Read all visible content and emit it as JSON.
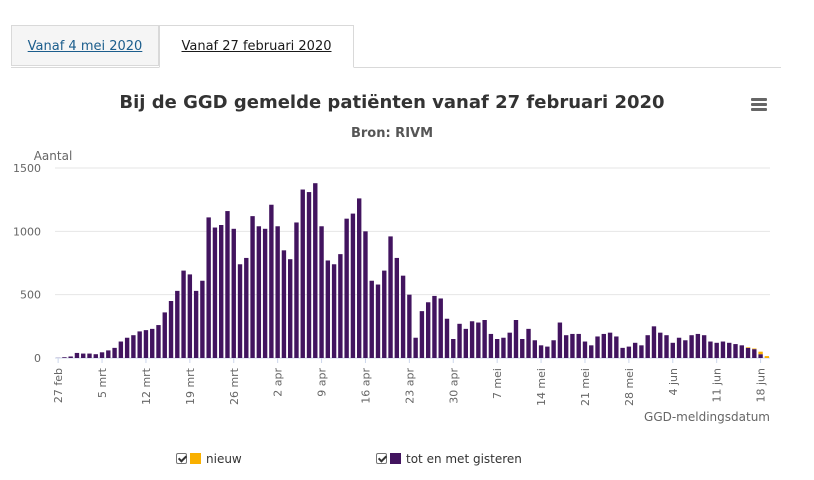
{
  "tabs": [
    {
      "label": "Vanaf 4 mei 2020",
      "active": false
    },
    {
      "label": "Vanaf 27 februari 2020",
      "active": true
    }
  ],
  "menu_icon": "hamburger-menu-icon",
  "chart_data": {
    "type": "bar",
    "stacked": true,
    "title": "Bij de GGD gemelde patiënten vanaf 27 februari 2020",
    "subtitle": "Bron: RIVM",
    "ylabel": "Aantal",
    "xlabel": "GGD-meldingsdatum",
    "ylim": [
      0,
      1500
    ],
    "yticks": [
      0,
      500,
      1000,
      1500
    ],
    "start_date": "27 feb",
    "xtick_labels": [
      "27 feb",
      "5 mrt",
      "12 mrt",
      "19 mrt",
      "26 mrt",
      "2 apr",
      "9 apr",
      "16 apr",
      "23 apr",
      "30 apr",
      "7 mei",
      "14 mei",
      "21 mei",
      "28 mei",
      "4 jun",
      "11 jun",
      "18 jun"
    ],
    "grid": true,
    "legend_position": "bottom",
    "series": [
      {
        "name": "tot en met gisteren",
        "color": "#42145f",
        "values": [
          1,
          6,
          12,
          40,
          35,
          35,
          30,
          45,
          60,
          80,
          130,
          160,
          180,
          210,
          220,
          230,
          260,
          360,
          450,
          530,
          690,
          660,
          530,
          610,
          1110,
          1030,
          1050,
          1160,
          1020,
          740,
          790,
          1120,
          1040,
          1020,
          1210,
          1040,
          850,
          780,
          1070,
          1330,
          1310,
          1380,
          1040,
          770,
          740,
          820,
          1100,
          1140,
          1260,
          1000,
          610,
          580,
          690,
          960,
          790,
          650,
          500,
          160,
          370,
          440,
          490,
          470,
          310,
          150,
          270,
          230,
          290,
          280,
          300,
          190,
          150,
          160,
          200,
          300,
          150,
          230,
          140,
          100,
          90,
          140,
          280,
          180,
          190,
          190,
          130,
          100,
          170,
          190,
          200,
          170,
          80,
          90,
          120,
          100,
          180,
          250,
          200,
          180,
          120,
          160,
          140,
          180,
          190,
          180,
          130,
          120,
          130,
          120,
          110,
          100,
          80,
          70,
          30,
          0
        ]
      },
      {
        "name": "nieuw",
        "color": "#f9b000",
        "values": [
          0,
          0,
          0,
          0,
          0,
          0,
          0,
          0,
          0,
          0,
          0,
          0,
          0,
          0,
          0,
          0,
          0,
          0,
          0,
          0,
          0,
          0,
          0,
          0,
          0,
          0,
          0,
          0,
          0,
          0,
          0,
          0,
          0,
          0,
          0,
          0,
          0,
          0,
          0,
          0,
          0,
          0,
          0,
          0,
          0,
          0,
          0,
          0,
          0,
          0,
          0,
          0,
          0,
          0,
          0,
          0,
          0,
          0,
          0,
          0,
          0,
          0,
          0,
          0,
          0,
          0,
          0,
          0,
          0,
          0,
          0,
          0,
          0,
          0,
          0,
          0,
          0,
          0,
          0,
          0,
          0,
          0,
          0,
          0,
          0,
          0,
          0,
          0,
          0,
          0,
          0,
          0,
          0,
          0,
          0,
          0,
          0,
          0,
          0,
          0,
          0,
          0,
          0,
          0,
          0,
          0,
          0,
          0,
          0,
          0,
          5,
          5,
          20,
          15
        ]
      }
    ]
  }
}
